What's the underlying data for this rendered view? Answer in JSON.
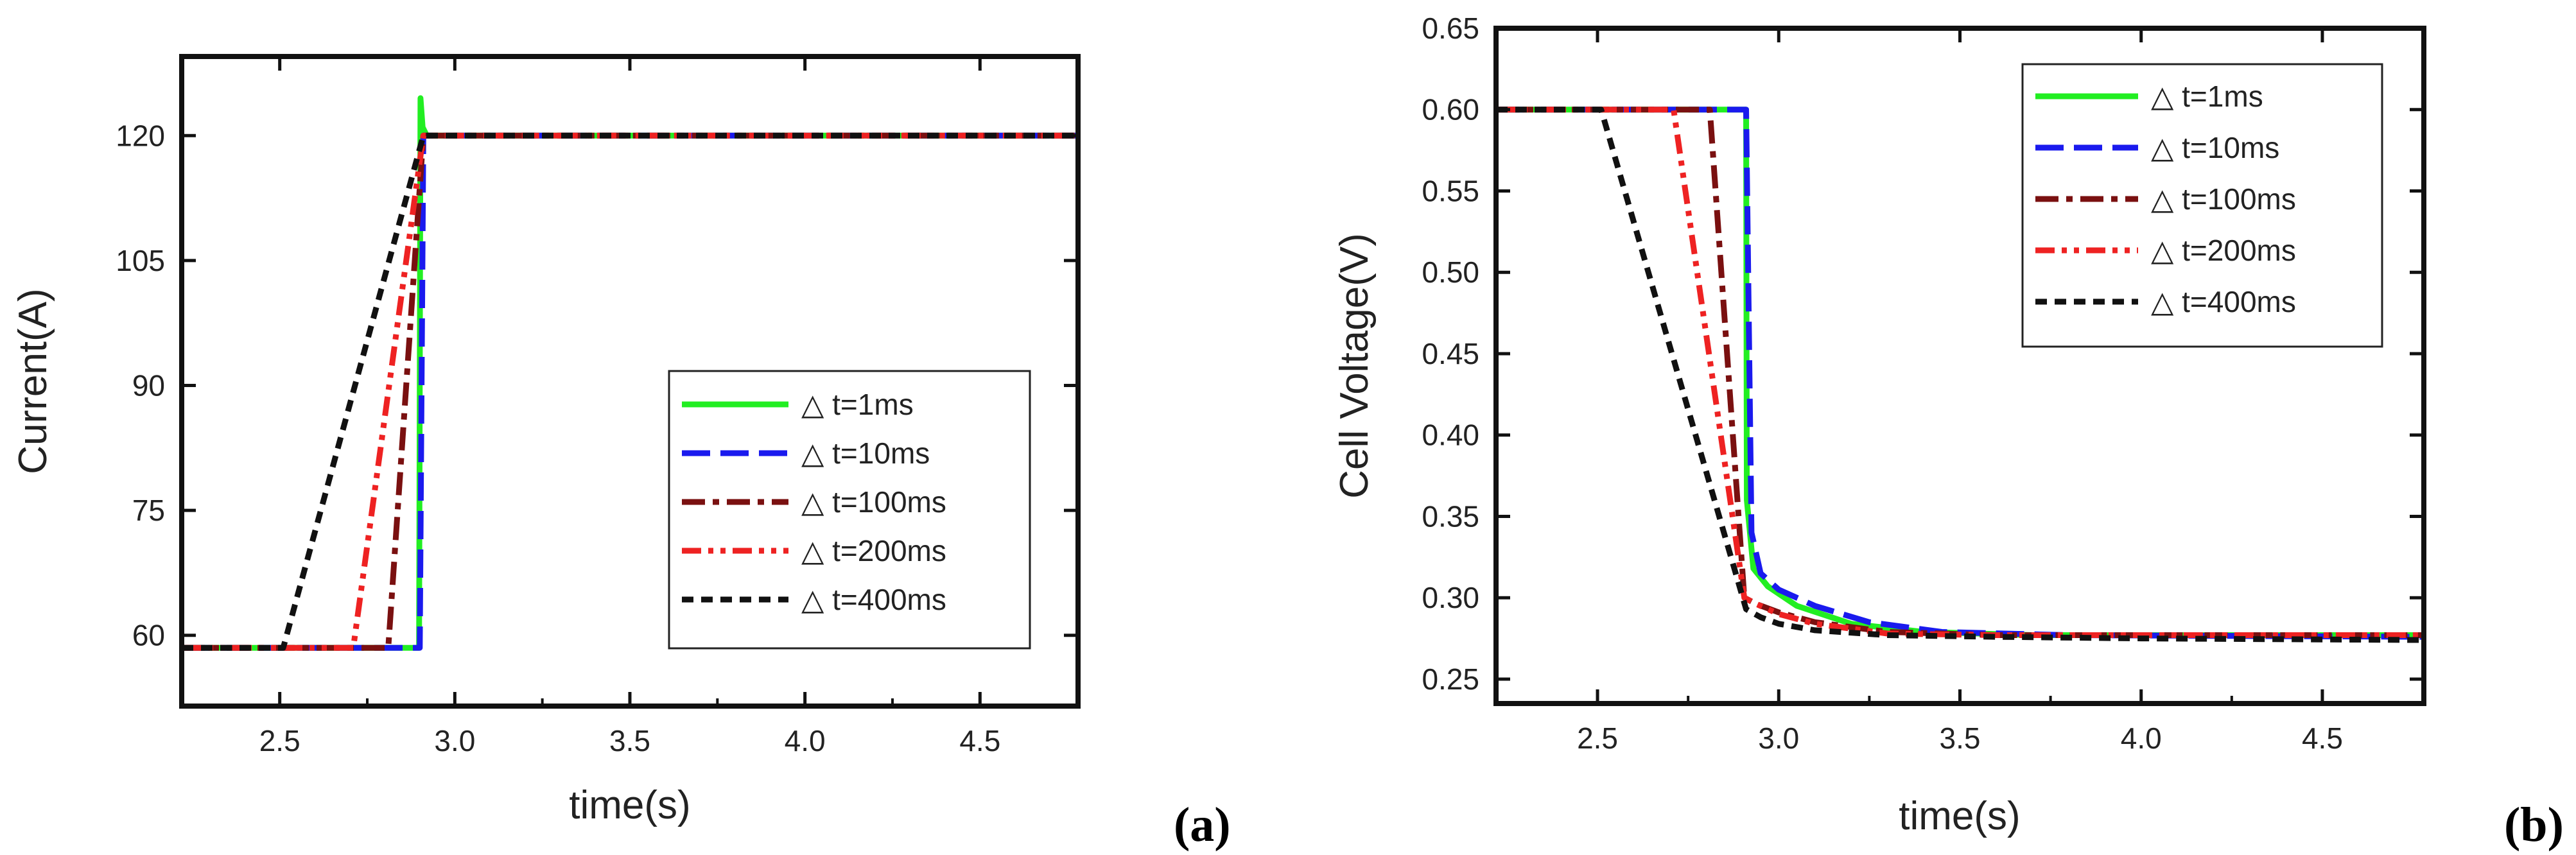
{
  "chart_data": [
    {
      "type": "line",
      "panel_label": "(a)",
      "xlabel": "time(s)",
      "ylabel": "Current(A)",
      "xlim": [
        2.22,
        4.78
      ],
      "ylim": [
        51.5,
        129.5
      ],
      "xticks": [
        2.5,
        3.0,
        3.5,
        4.0,
        4.5
      ],
      "xtick_labels": [
        "2.5",
        "3.0",
        "3.5",
        "4.0",
        "4.5"
      ],
      "yticks": [
        60,
        75,
        90,
        105,
        120
      ],
      "ytick_labels": [
        "60",
        "75",
        "90",
        "105",
        "120"
      ],
      "legend_position": "lower-right",
      "series": [
        {
          "name": "△ t=1ms",
          "color": "#22ee22",
          "dash": "solid",
          "x": [
            2.22,
            2.898,
            2.902,
            2.908,
            2.92,
            4.78
          ],
          "y": [
            58.5,
            58.5,
            124.5,
            121,
            120,
            120
          ]
        },
        {
          "name": "△ t=10ms",
          "color": "#1a1aee",
          "dash": "dashed",
          "x": [
            2.22,
            2.9,
            2.91,
            4.78
          ],
          "y": [
            58.5,
            58.5,
            120,
            120
          ]
        },
        {
          "name": "△ t=100ms",
          "color": "#7a1010",
          "dash": "dashdot",
          "x": [
            2.22,
            2.81,
            2.91,
            4.78
          ],
          "y": [
            58.5,
            58.5,
            120,
            120
          ]
        },
        {
          "name": "△ t=200ms",
          "color": "#ee2222",
          "dash": "dashdotdot",
          "x": [
            2.22,
            2.71,
            2.91,
            4.78
          ],
          "y": [
            58.5,
            58.5,
            120,
            120
          ]
        },
        {
          "name": "△ t=400ms",
          "color": "#111111",
          "dash": "shortdash",
          "x": [
            2.22,
            2.51,
            2.91,
            4.78
          ],
          "y": [
            58.5,
            58.5,
            120,
            120
          ]
        }
      ]
    },
    {
      "type": "line",
      "panel_label": "(b)",
      "xlabel": "time(s)",
      "ylabel": "Cell Voltage(V)",
      "xlim": [
        2.22,
        4.78
      ],
      "ylim": [
        0.235,
        0.65
      ],
      "xticks": [
        2.5,
        3.0,
        3.5,
        4.0,
        4.5
      ],
      "xtick_labels": [
        "2.5",
        "3.0",
        "3.5",
        "4.0",
        "4.5"
      ],
      "yticks": [
        0.25,
        0.3,
        0.35,
        0.4,
        0.45,
        0.5,
        0.55,
        0.6,
        0.65
      ],
      "ytick_labels": [
        "0.25",
        "0.30",
        "0.35",
        "0.40",
        "0.45",
        "0.50",
        "0.55",
        "0.60",
        "0.65"
      ],
      "legend_position": "top-right",
      "series": [
        {
          "name": "△ t=1ms",
          "color": "#22ee22",
          "dash": "solid",
          "x": [
            2.22,
            2.91,
            2.912,
            2.93,
            2.97,
            3.05,
            3.2,
            3.4,
            3.7,
            4.0,
            4.78
          ],
          "y": [
            0.6,
            0.6,
            0.36,
            0.318,
            0.307,
            0.295,
            0.284,
            0.279,
            0.277,
            0.277,
            0.277
          ]
        },
        {
          "name": "△ t=10ms",
          "color": "#1a1aee",
          "dash": "dashed",
          "x": [
            2.22,
            2.91,
            2.925,
            2.95,
            3.0,
            3.1,
            3.25,
            3.45,
            3.8,
            4.78
          ],
          "y": [
            0.6,
            0.6,
            0.34,
            0.315,
            0.305,
            0.295,
            0.285,
            0.279,
            0.277,
            0.276
          ]
        },
        {
          "name": "△ t=100ms",
          "color": "#7a1010",
          "dash": "dashdot",
          "x": [
            2.22,
            2.81,
            2.905,
            2.94,
            3.0,
            3.1,
            3.3,
            3.6,
            4.78
          ],
          "y": [
            0.6,
            0.6,
            0.3,
            0.296,
            0.291,
            0.285,
            0.279,
            0.277,
            0.277
          ]
        },
        {
          "name": "△ t=200ms",
          "color": "#ee2222",
          "dash": "dashdotdot",
          "x": [
            2.22,
            2.71,
            2.905,
            2.94,
            3.0,
            3.1,
            3.3,
            3.6,
            4.78
          ],
          "y": [
            0.6,
            0.6,
            0.3,
            0.296,
            0.29,
            0.284,
            0.278,
            0.277,
            0.277
          ]
        },
        {
          "name": "△ t=400ms",
          "color": "#111111",
          "dash": "shortdash",
          "x": [
            2.22,
            2.51,
            2.91,
            2.95,
            3.0,
            3.1,
            3.3,
            3.6,
            4.0,
            4.78
          ],
          "y": [
            0.6,
            0.6,
            0.293,
            0.288,
            0.284,
            0.28,
            0.277,
            0.276,
            0.275,
            0.274
          ]
        }
      ]
    }
  ]
}
